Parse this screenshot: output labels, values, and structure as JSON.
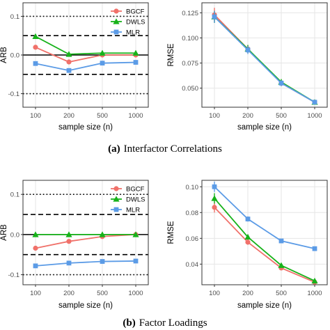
{
  "colors": {
    "BGCF": "#F0716A",
    "DWLS": "#17B21A",
    "MLR": "#5B9BE6",
    "reference_line": "#000000",
    "grid": "#E6E6E6",
    "panel_border": "#333333"
  },
  "captions": [
    {
      "letter": "(a)",
      "text": "Interfactor Correlations"
    },
    {
      "letter": "(b)",
      "text": "Factor Loadings"
    }
  ],
  "chart_data": [
    {
      "type": "line",
      "panel": "a-left",
      "xlabel": "sample size (n)",
      "ylabel": "ARB",
      "categories": [
        "100",
        "200",
        "500",
        "1000"
      ],
      "ylim": [
        -0.135,
        0.135
      ],
      "yticks": [
        0.1,
        0.0,
        -0.1
      ],
      "ytick_labels": [
        "0.1",
        "0.0",
        "-0.1"
      ],
      "reference_lines": [
        {
          "y": 0.1,
          "style": "dotted"
        },
        {
          "y": 0.05,
          "style": "dashed"
        },
        {
          "y": 0.0,
          "style": "solid"
        },
        {
          "y": -0.05,
          "style": "dashed"
        },
        {
          "y": -0.1,
          "style": "dotted"
        }
      ],
      "legend": {
        "position": "top-right",
        "entries": [
          "BGCF",
          "DWLS",
          "MLR"
        ]
      },
      "series": [
        {
          "name": "BGCF",
          "marker": "circle",
          "values": [
            0.02,
            -0.018,
            0.0,
            0.0
          ]
        },
        {
          "name": "DWLS",
          "marker": "triangle",
          "values": [
            0.048,
            0.002,
            0.005,
            0.005
          ]
        },
        {
          "name": "MLR",
          "marker": "square",
          "values": [
            -0.022,
            -0.04,
            -0.021,
            -0.019
          ]
        }
      ]
    },
    {
      "type": "line",
      "panel": "a-right",
      "xlabel": "sample size (n)",
      "ylabel": "RMSE",
      "categories": [
        "100",
        "200",
        "500",
        "1000"
      ],
      "ylim": [
        0.031,
        0.135
      ],
      "yticks": [
        0.125,
        0.1,
        0.075,
        0.05
      ],
      "ytick_labels": [
        "0.125",
        "0.100",
        "0.075",
        "0.050"
      ],
      "series": [
        {
          "name": "BGCF",
          "marker": "circle",
          "values": [
            0.123,
            0.089,
            0.055,
            0.036
          ],
          "errors": [
            0.007,
            0.004,
            0.003,
            0.002
          ]
        },
        {
          "name": "DWLS",
          "marker": "triangle",
          "values": [
            0.121,
            0.089,
            0.056,
            0.036
          ],
          "errors": [
            0.006,
            0.004,
            0.003,
            0.002
          ]
        },
        {
          "name": "MLR",
          "marker": "square",
          "values": [
            0.121,
            0.088,
            0.055,
            0.036
          ],
          "errors": [
            0.006,
            0.004,
            0.003,
            0.002
          ]
        }
      ]
    },
    {
      "type": "line",
      "panel": "b-left",
      "xlabel": "sample size (n)",
      "ylabel": "ARB",
      "categories": [
        "100",
        "200",
        "500",
        "1000"
      ],
      "ylim": [
        -0.125,
        0.135
      ],
      "yticks": [
        0.1,
        0.0,
        -0.1
      ],
      "ytick_labels": [
        "0.1",
        "0.0",
        "-0.1"
      ],
      "reference_lines": [
        {
          "y": 0.1,
          "style": "dotted"
        },
        {
          "y": 0.05,
          "style": "dashed"
        },
        {
          "y": 0.0,
          "style": "solid"
        },
        {
          "y": -0.05,
          "style": "dashed"
        },
        {
          "y": -0.1,
          "style": "dotted"
        }
      ],
      "legend": {
        "position": "top-right",
        "entries": [
          "BGCF",
          "DWLS",
          "MLR"
        ]
      },
      "series": [
        {
          "name": "BGCF",
          "marker": "circle",
          "values": [
            -0.034,
            -0.017,
            -0.005,
            0.0
          ]
        },
        {
          "name": "DWLS",
          "marker": "triangle",
          "values": [
            0.0,
            0.0,
            0.0,
            0.0
          ]
        },
        {
          "name": "MLR",
          "marker": "square",
          "values": [
            -0.078,
            -0.071,
            -0.067,
            -0.066
          ]
        }
      ]
    },
    {
      "type": "line",
      "panel": "b-right",
      "xlabel": "sample size (n)",
      "ylabel": "RMSE",
      "categories": [
        "100",
        "200",
        "500",
        "1000"
      ],
      "ylim": [
        0.024,
        0.105
      ],
      "yticks": [
        0.1,
        0.08,
        0.06,
        0.04
      ],
      "ytick_labels": [
        "0.10",
        "0.08",
        "0.06",
        "0.04"
      ],
      "series": [
        {
          "name": "BGCF",
          "marker": "circle",
          "values": [
            0.084,
            0.057,
            0.037,
            0.026
          ],
          "errors": [
            0.004,
            0.002,
            0.001,
            0.001
          ]
        },
        {
          "name": "DWLS",
          "marker": "triangle",
          "values": [
            0.091,
            0.061,
            0.039,
            0.027
          ],
          "errors": [
            0.004,
            0.002,
            0.001,
            0.001
          ]
        },
        {
          "name": "MLR",
          "marker": "square",
          "values": [
            0.1,
            0.075,
            0.058,
            0.052
          ],
          "errors": [
            0.004,
            0.002,
            0.001,
            0.001
          ]
        }
      ]
    }
  ]
}
